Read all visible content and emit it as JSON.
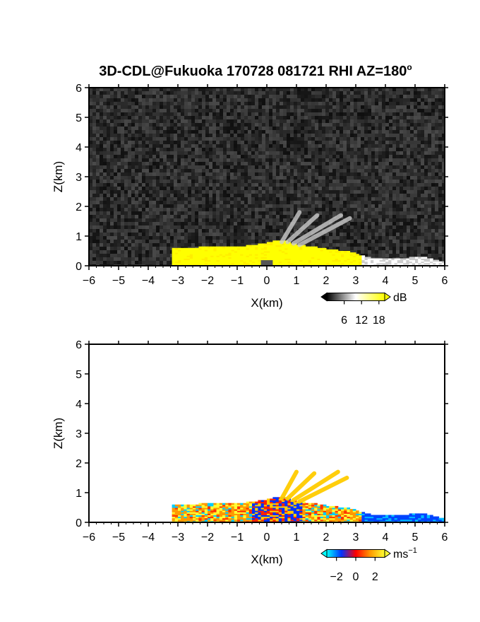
{
  "title_main": "3D-CDL@Fukuoka 170728 081721 RHI AZ=180",
  "title_degree": "o",
  "chart_data": [
    {
      "type": "heatmap",
      "quantity": "intensity",
      "xlabel": "X(km)",
      "ylabel": "Z(km)",
      "xlim": [
        -6,
        6
      ],
      "ylim": [
        0,
        6
      ],
      "xticks": [
        -6,
        -5,
        -4,
        -3,
        -2,
        -1,
        0,
        1,
        2,
        3,
        4,
        5,
        6
      ],
      "yticks": [
        0,
        1,
        2,
        3,
        4,
        5,
        6
      ],
      "background": "noise",
      "colorbar": {
        "unit": "dB",
        "ticks": [
          6,
          12,
          18
        ],
        "range": [
          0,
          20
        ],
        "colors": [
          "#000000",
          "#ffffff",
          "#ffff00"
        ]
      },
      "features": {
        "boundary_layer_top_km": [
          [
            -3.2,
            0.55
          ],
          [
            -2,
            0.62
          ],
          [
            -1,
            0.6
          ],
          [
            0,
            0.75
          ],
          [
            0.5,
            0.85
          ],
          [
            1,
            0.7
          ],
          [
            2,
            0.55
          ],
          [
            2.8,
            0.45
          ],
          [
            3.5,
            0.25
          ],
          [
            4.5,
            0.2
          ],
          [
            5.2,
            0.3
          ],
          [
            6,
            0.1
          ]
        ],
        "rays": [
          {
            "from": [
              0.5,
              0.8
            ],
            "to": [
              1.1,
              1.8
            ]
          },
          {
            "from": [
              0.7,
              0.8
            ],
            "to": [
              1.7,
              1.7
            ]
          },
          {
            "from": [
              0.9,
              0.75
            ],
            "to": [
              2.5,
              1.7
            ]
          },
          {
            "from": [
              1.1,
              0.7
            ],
            "to": [
              2.8,
              1.6
            ]
          }
        ]
      }
    },
    {
      "type": "heatmap",
      "quantity": "radial velocity",
      "xlabel": "X(km)",
      "ylabel": "Z(km)",
      "xlim": [
        -6,
        6
      ],
      "ylim": [
        0,
        6
      ],
      "xticks": [
        -6,
        -5,
        -4,
        -3,
        -2,
        -1,
        0,
        1,
        2,
        3,
        4,
        5,
        6
      ],
      "yticks": [
        0,
        1,
        2,
        3,
        4,
        5,
        6
      ],
      "background": "white",
      "colorbar": {
        "unit": "ms",
        "unit_exp": "−1",
        "tick_labels": [
          "−2",
          "0",
          "2"
        ],
        "ticks": [
          -2,
          0,
          2
        ],
        "range": [
          -3,
          3
        ],
        "colors": [
          "#00ffff",
          "#0033ff",
          "#ff0000",
          "#ff9900",
          "#ffff33"
        ]
      },
      "features": {
        "boundary_layer_top_km": [
          [
            -3.2,
            0.55
          ],
          [
            -2,
            0.62
          ],
          [
            -1,
            0.6
          ],
          [
            0,
            0.75
          ],
          [
            0.5,
            0.85
          ],
          [
            1,
            0.7
          ],
          [
            2,
            0.55
          ],
          [
            2.8,
            0.45
          ],
          [
            3.5,
            0.25
          ],
          [
            4.5,
            0.2
          ],
          [
            5.2,
            0.3
          ],
          [
            6,
            0.1
          ]
        ],
        "rays": [
          {
            "from": [
              0.5,
              0.8
            ],
            "to": [
              1.0,
              1.7
            ]
          },
          {
            "from": [
              0.7,
              0.8
            ],
            "to": [
              1.6,
              1.65
            ]
          },
          {
            "from": [
              0.9,
              0.75
            ],
            "to": [
              2.4,
              1.7
            ]
          },
          {
            "from": [
              1.1,
              0.7
            ],
            "to": [
              2.7,
              1.5
            ]
          }
        ]
      }
    }
  ]
}
